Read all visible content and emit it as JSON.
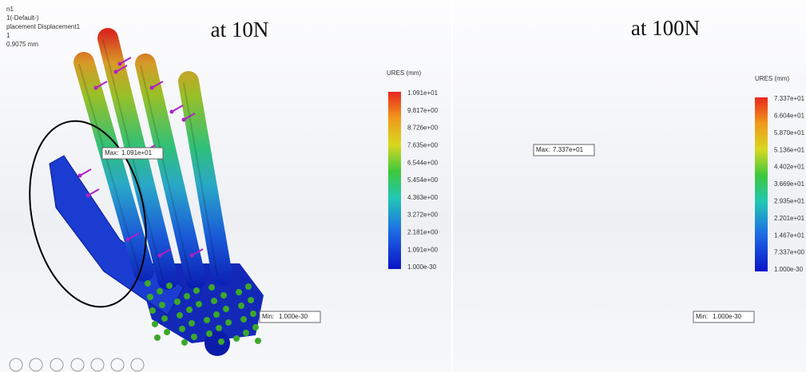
{
  "panels": [
    {
      "info": [
        "n1",
        "1(-Default-)",
        "placement Displacement1",
        "1",
        "0.9075 mm"
      ],
      "title": "at 10N",
      "legend": {
        "title": "URES (mm)",
        "labels": [
          "1.091e+01",
          "9.817e+00",
          "8.726e+00",
          "7.635e+00",
          "6.544e+00",
          "5.454e+00",
          "4.363e+00",
          "3.272e+00",
          "2.181e+00",
          "1.091e+00",
          "1.000e-30"
        ]
      },
      "max": {
        "label": "Max:",
        "value": "1.091e+01"
      },
      "min": {
        "label": "Min:",
        "value": "1.000e-30"
      }
    },
    {
      "info": [],
      "title": "at 100N",
      "legend": {
        "title": "URES (mm)",
        "labels": [
          "7.337e+01",
          "6.604e+01",
          "5.870e+01",
          "5.136e+01",
          "4.402e+01",
          "3.669e+01",
          "2.935e+01",
          "2.201e+01",
          "1.467e+01",
          "7.337e+00",
          "1.000e-30"
        ]
      },
      "max": {
        "label": "Max:",
        "value": "7.337e+01"
      },
      "min": {
        "label": "Min:",
        "value": "1.000e-30"
      }
    }
  ]
}
